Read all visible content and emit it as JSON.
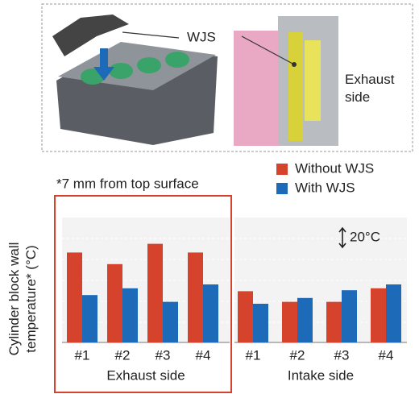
{
  "figure": {
    "labels": [
      "WJS",
      "Exhaust side"
    ]
  },
  "chart_data": {
    "type": "bar",
    "annotation": "*7 mm from top surface",
    "y_label": "Cylinder block wall temperature* (°C)",
    "scale_bar": {
      "value": 20,
      "label": "20°C"
    },
    "panels": [
      {
        "label": "Exhaust side",
        "categories": [
          "#1",
          "#2",
          "#3",
          "#4"
        ],
        "series": [
          {
            "name": "Without WJS",
            "color": "#d5432d",
            "values": [
              93,
              81,
              102,
              93
            ]
          },
          {
            "name": "With WJS",
            "color": "#1c6ab8",
            "values": [
              49,
              56,
              42,
              60
            ]
          }
        ]
      },
      {
        "label": "Intake side",
        "categories": [
          "#1",
          "#2",
          "#3",
          "#4"
        ],
        "series": [
          {
            "name": "Without WJS",
            "color": "#d5432d",
            "values": [
              53,
              42,
              42,
              56
            ]
          },
          {
            "name": "With WJS",
            "color": "#1c6ab8",
            "values": [
              40,
              46,
              54,
              60
            ]
          }
        ]
      }
    ]
  }
}
